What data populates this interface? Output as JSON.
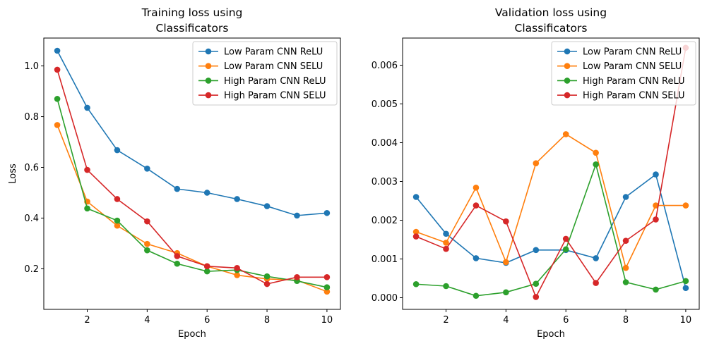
{
  "chart_data": [
    {
      "type": "line",
      "title": "Training loss using\nClassificators",
      "xlabel": "Epoch",
      "ylabel": "Loss",
      "x": [
        1,
        2,
        3,
        4,
        5,
        6,
        7,
        8,
        9,
        10
      ],
      "xlim": [
        0.55,
        10.45
      ],
      "ylim": [
        0.04,
        1.11
      ],
      "xticks": [
        2,
        4,
        6,
        8,
        10
      ],
      "yticks": [
        0.2,
        0.4,
        0.6,
        0.8,
        1.0
      ],
      "ytick_labels": [
        "0.2",
        "0.4",
        "0.6",
        "0.8",
        "1.0"
      ],
      "legend_position": "top-right",
      "grid": false,
      "series": [
        {
          "name": "Low Param CNN ReLU",
          "color": "#1f77b4",
          "values": [
            1.06,
            0.835,
            0.668,
            0.595,
            0.515,
            0.5,
            0.475,
            0.447,
            0.41,
            0.42
          ]
        },
        {
          "name": "Low Param CNN SELU",
          "color": "#ff7f0e",
          "values": [
            0.767,
            0.465,
            0.37,
            0.298,
            0.262,
            0.21,
            0.175,
            0.16,
            0.155,
            0.11
          ]
        },
        {
          "name": "High Param CNN ReLU",
          "color": "#2ca02c",
          "values": [
            0.87,
            0.438,
            0.39,
            0.273,
            0.22,
            0.19,
            0.195,
            0.17,
            0.152,
            0.127
          ]
        },
        {
          "name": "High Param CNN SELU",
          "color": "#d62728",
          "values": [
            0.985,
            0.59,
            0.475,
            0.387,
            0.25,
            0.21,
            0.203,
            0.14,
            0.167,
            0.167
          ]
        }
      ]
    },
    {
      "type": "line",
      "title": "Validation loss using\nClassificators",
      "xlabel": "Epoch",
      "ylabel": "",
      "x": [
        1,
        2,
        3,
        4,
        5,
        6,
        7,
        8,
        9,
        10
      ],
      "xlim": [
        0.55,
        10.45
      ],
      "ylim": [
        -0.0003,
        0.0067
      ],
      "xticks": [
        2,
        4,
        6,
        8,
        10
      ],
      "yticks": [
        0,
        0.001,
        0.002,
        0.003,
        0.004,
        0.005,
        0.006
      ],
      "ytick_labels": [
        "0.000",
        "0.001",
        "0.002",
        "0.003",
        "0.004",
        "0.005",
        "0.006"
      ],
      "legend_position": "top-right",
      "grid": false,
      "series": [
        {
          "name": "Low Param CNN ReLU",
          "color": "#1f77b4",
          "values": [
            0.0026,
            0.00165,
            0.00102,
            0.0009,
            0.00123,
            0.00123,
            0.00102,
            0.0026,
            0.00318,
            0.00025
          ]
        },
        {
          "name": "Low Param CNN SELU",
          "color": "#ff7f0e",
          "values": [
            0.0017,
            0.00142,
            0.00284,
            0.00092,
            0.00347,
            0.00422,
            0.00374,
            0.00077,
            0.00238,
            0.00238
          ]
        },
        {
          "name": "High Param CNN ReLU",
          "color": "#2ca02c",
          "values": [
            0.00035,
            0.0003,
            5e-05,
            0.00014,
            0.00036,
            0.00125,
            0.00344,
            0.0004,
            0.00021,
            0.00043
          ]
        },
        {
          "name": "High Param CNN SELU",
          "color": "#d62728",
          "values": [
            0.00158,
            0.00126,
            0.00238,
            0.00197,
            2e-05,
            0.00152,
            0.00038,
            0.00147,
            0.00202,
            0.00645
          ]
        }
      ]
    }
  ]
}
